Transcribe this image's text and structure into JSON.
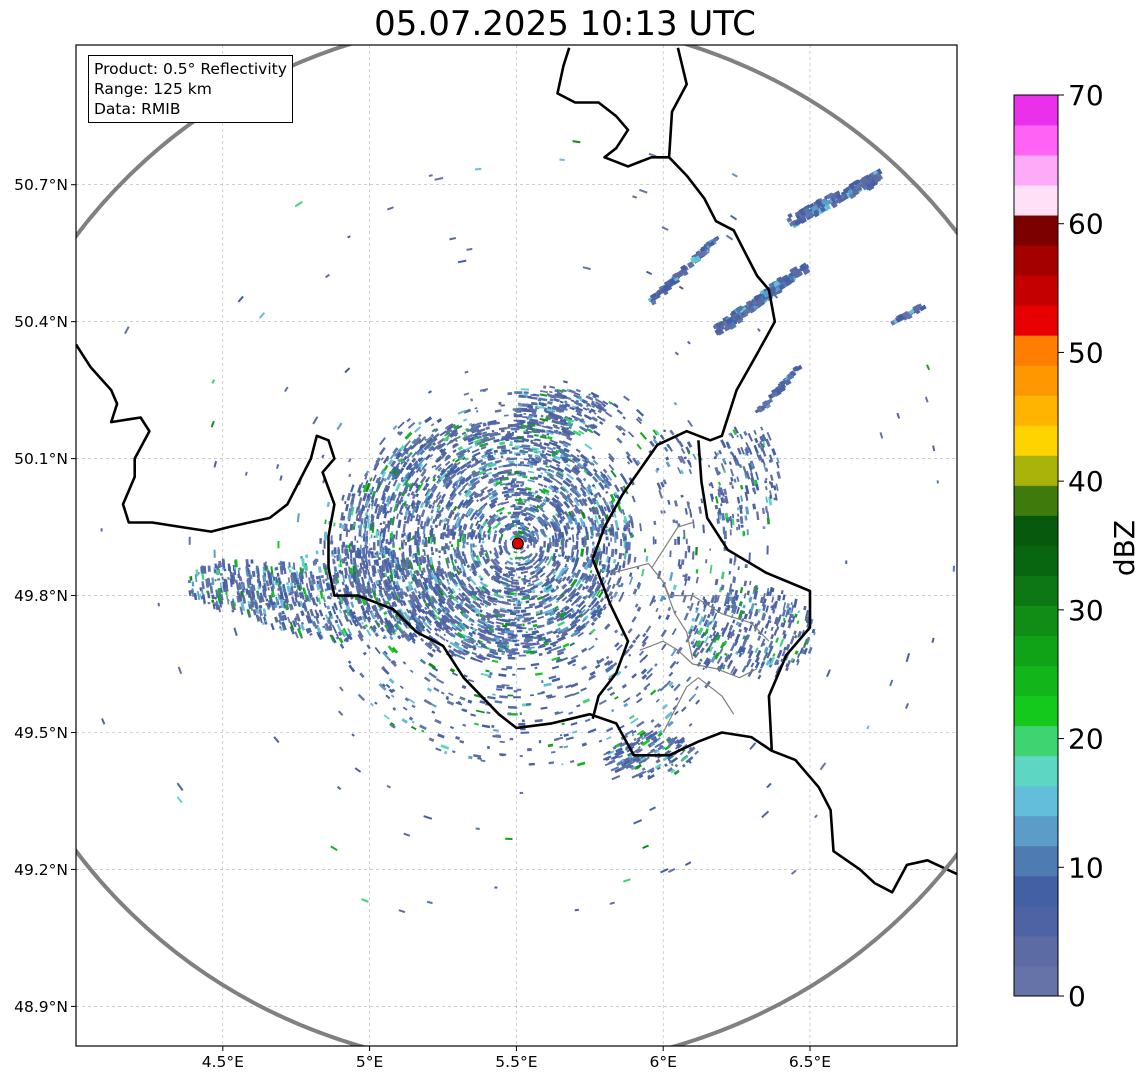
{
  "title": "05.07.2025 10:13 UTC",
  "info": {
    "product": "Product: 0.5° Reflectivity",
    "range": "Range: 125 km",
    "data": "Data: RMIB"
  },
  "map": {
    "lon_range": [
      4.0,
      7.0
    ],
    "lat_range": [
      48.8,
      51.0
    ],
    "radar_site": {
      "lon": 5.505,
      "lat": 49.914
    },
    "range_ring_km": 125,
    "x_ticks": [
      {
        "value": 4.5,
        "label": "4.5°E"
      },
      {
        "value": 5.0,
        "label": "5°E"
      },
      {
        "value": 5.5,
        "label": "5.5°E"
      },
      {
        "value": 6.0,
        "label": "6°E"
      },
      {
        "value": 6.5,
        "label": "6.5°E"
      }
    ],
    "y_ticks": [
      {
        "value": 50.7,
        "label": "50.7°N"
      },
      {
        "value": 50.4,
        "label": "50.4°N"
      },
      {
        "value": 50.1,
        "label": "50.1°N"
      },
      {
        "value": 49.8,
        "label": "49.8°N"
      },
      {
        "value": 49.5,
        "label": "49.5°N"
      },
      {
        "value": 49.2,
        "label": "49.2°N"
      },
      {
        "value": 48.9,
        "label": "48.9°N"
      }
    ],
    "colors": {
      "border": "#000000",
      "province_border": "#808080",
      "ring": "#808080",
      "grid": "#b0b0b0",
      "site": "#e00000"
    },
    "borders": [
      [
        [
          4.0,
          50.35
        ],
        [
          4.05,
          50.3
        ],
        [
          4.12,
          50.25
        ],
        [
          4.14,
          50.22
        ],
        [
          4.12,
          50.18
        ],
        [
          4.22,
          50.19
        ],
        [
          4.25,
          50.16
        ],
        [
          4.2,
          50.1
        ],
        [
          4.2,
          50.06
        ],
        [
          4.16,
          50.0
        ],
        [
          4.18,
          49.96
        ],
        [
          4.26,
          49.96
        ],
        [
          4.36,
          49.95
        ],
        [
          4.46,
          49.94
        ],
        [
          4.52,
          49.95
        ],
        [
          4.66,
          49.97
        ],
        [
          4.72,
          50.0
        ],
        [
          4.8,
          50.1
        ],
        [
          4.82,
          50.15
        ],
        [
          4.86,
          50.14
        ],
        [
          4.88,
          50.1
        ],
        [
          4.84,
          50.07
        ],
        [
          4.88,
          50.0
        ],
        [
          4.86,
          49.93
        ],
        [
          4.86,
          49.86
        ],
        [
          4.88,
          49.8
        ],
        [
          4.96,
          49.8
        ],
        [
          5.08,
          49.77
        ],
        [
          5.16,
          49.72
        ],
        [
          5.25,
          49.69
        ],
        [
          5.32,
          49.62
        ],
        [
          5.44,
          49.54
        ],
        [
          5.5,
          49.51
        ],
        [
          5.62,
          49.52
        ],
        [
          5.75,
          49.54
        ],
        [
          5.84,
          49.52
        ],
        [
          5.9,
          49.45
        ],
        [
          6.02,
          49.45
        ],
        [
          6.12,
          49.48
        ],
        [
          6.2,
          49.5
        ],
        [
          6.3,
          49.49
        ],
        [
          6.37,
          49.46
        ],
        [
          6.45,
          49.44
        ],
        [
          6.53,
          49.38
        ],
        [
          6.57,
          49.33
        ],
        [
          6.58,
          49.24
        ],
        [
          6.67,
          49.2
        ],
        [
          6.72,
          49.17
        ],
        [
          6.78,
          49.15
        ],
        [
          6.83,
          49.21
        ],
        [
          6.9,
          49.22
        ],
        [
          7.0,
          49.19
        ]
      ],
      [
        [
          5.76,
          49.53
        ],
        [
          5.78,
          49.58
        ],
        [
          5.84,
          49.63
        ],
        [
          5.88,
          49.7
        ],
        [
          5.82,
          49.78
        ],
        [
          5.76,
          49.88
        ],
        [
          5.8,
          49.95
        ],
        [
          5.86,
          50.02
        ],
        [
          5.98,
          50.13
        ],
        [
          6.08,
          50.16
        ],
        [
          6.16,
          50.14
        ],
        [
          6.2,
          50.15
        ],
        [
          6.25,
          50.25
        ],
        [
          6.32,
          50.33
        ],
        [
          6.38,
          50.4
        ],
        [
          6.36,
          50.47
        ],
        [
          6.32,
          50.5
        ],
        [
          6.28,
          50.55
        ],
        [
          6.24,
          50.6
        ],
        [
          6.18,
          50.62
        ],
        [
          6.14,
          50.67
        ],
        [
          6.08,
          50.72
        ],
        [
          6.02,
          50.76
        ],
        [
          6.03,
          50.86
        ],
        [
          6.08,
          50.92
        ],
        [
          6.05,
          51.0
        ]
      ],
      [
        [
          6.12,
          50.14
        ],
        [
          6.13,
          50.05
        ],
        [
          6.15,
          49.97
        ],
        [
          6.22,
          49.9
        ],
        [
          6.35,
          49.85
        ],
        [
          6.5,
          49.81
        ],
        [
          6.5,
          49.73
        ],
        [
          6.42,
          49.67
        ],
        [
          6.36,
          49.58
        ],
        [
          6.37,
          49.46
        ]
      ],
      [
        [
          5.68,
          51.0
        ],
        [
          5.66,
          50.96
        ],
        [
          5.64,
          50.9
        ],
        [
          5.7,
          50.88
        ],
        [
          5.78,
          50.88
        ],
        [
          5.84,
          50.85
        ],
        [
          5.88,
          50.82
        ],
        [
          5.84,
          50.78
        ],
        [
          5.8,
          50.76
        ],
        [
          5.88,
          50.74
        ],
        [
          5.96,
          50.76
        ],
        [
          6.02,
          50.76
        ]
      ]
    ],
    "province_borders": [
      [
        [
          5.83,
          49.85
        ],
        [
          5.95,
          49.87
        ],
        [
          6.0,
          49.83
        ],
        [
          6.02,
          49.8
        ],
        [
          6.1,
          49.8
        ],
        [
          6.2,
          49.76
        ],
        [
          6.3,
          49.74
        ],
        [
          6.36,
          49.7
        ]
      ],
      [
        [
          5.92,
          49.68
        ],
        [
          6.0,
          49.7
        ],
        [
          6.05,
          49.68
        ],
        [
          6.1,
          49.65
        ],
        [
          6.18,
          49.64
        ],
        [
          6.26,
          49.62
        ],
        [
          6.32,
          49.64
        ]
      ],
      [
        [
          6.0,
          49.5
        ],
        [
          6.04,
          49.55
        ],
        [
          6.08,
          49.6
        ],
        [
          6.12,
          49.62
        ],
        [
          6.2,
          49.58
        ],
        [
          6.24,
          49.54
        ]
      ],
      [
        [
          5.96,
          49.86
        ],
        [
          6.02,
          49.92
        ],
        [
          6.05,
          49.95
        ],
        [
          6.1,
          49.96
        ]
      ],
      [
        [
          6.0,
          49.83
        ],
        [
          6.04,
          49.76
        ],
        [
          6.08,
          49.72
        ],
        [
          6.1,
          49.66
        ]
      ]
    ],
    "storm_clusters": [
      {
        "lon": 5.4,
        "lat": 49.92,
        "rx": 0.5,
        "ry": 0.26,
        "count": 2400
      },
      {
        "lon": 5.55,
        "lat": 49.84,
        "rx": 0.75,
        "ry": 0.42,
        "count": 1100
      },
      {
        "lon": 4.95,
        "lat": 49.8,
        "rx": 0.4,
        "ry": 0.1,
        "count": 600
      },
      {
        "lon": 4.6,
        "lat": 49.82,
        "rx": 0.22,
        "ry": 0.06,
        "count": 260
      },
      {
        "lon": 5.65,
        "lat": 50.2,
        "rx": 0.16,
        "ry": 0.05,
        "count": 220
      },
      {
        "lon": 6.3,
        "lat": 49.72,
        "rx": 0.22,
        "ry": 0.1,
        "count": 320
      },
      {
        "lon": 5.95,
        "lat": 49.45,
        "rx": 0.15,
        "ry": 0.05,
        "count": 160
      },
      {
        "lon": 6.28,
        "lat": 50.05,
        "rx": 0.12,
        "ry": 0.12,
        "count": 140
      }
    ],
    "storm_bands": [
      {
        "from": [
          6.43,
          50.62
        ],
        "to": [
          6.74,
          50.72
        ],
        "width": 10,
        "count": 150
      },
      {
        "from": [
          6.18,
          50.38
        ],
        "to": [
          6.48,
          50.52
        ],
        "width": 9,
        "count": 150
      },
      {
        "from": [
          5.95,
          50.44
        ],
        "to": [
          6.18,
          50.58
        ],
        "width": 5,
        "count": 70
      },
      {
        "from": [
          6.32,
          50.2
        ],
        "to": [
          6.46,
          50.3
        ],
        "width": 4,
        "count": 40
      },
      {
        "from": [
          6.78,
          50.4
        ],
        "to": [
          6.88,
          50.43
        ],
        "width": 5,
        "count": 25
      }
    ]
  },
  "colorbar": {
    "label": "dBZ",
    "min": 0,
    "max": 70,
    "step": 2.5,
    "ticks": [
      {
        "value": 0,
        "label": "0"
      },
      {
        "value": 10,
        "label": "10"
      },
      {
        "value": 20,
        "label": "20"
      },
      {
        "value": 30,
        "label": "30"
      },
      {
        "value": 40,
        "label": "40"
      },
      {
        "value": 50,
        "label": "50"
      },
      {
        "value": 60,
        "label": "60"
      },
      {
        "value": 70,
        "label": "70"
      }
    ],
    "colors": [
      "#6573a8",
      "#5c6ba3",
      "#4e63a4",
      "#4260a3",
      "#4e7bb2",
      "#5b9cc8",
      "#63bedb",
      "#5dd6c4",
      "#3ed472",
      "#14c91c",
      "#12b51a",
      "#10a217",
      "#0f8d15",
      "#0b7813",
      "#086510",
      "#075a0d",
      "#3f7a0d",
      "#aab30a",
      "#fed400",
      "#feb400",
      "#ff9800",
      "#ff7d00",
      "#e80000",
      "#c50000",
      "#a50000",
      "#7d0000",
      "#ffe0f6",
      "#ffaaf8",
      "#ff62f5",
      "#eb30eb"
    ]
  }
}
